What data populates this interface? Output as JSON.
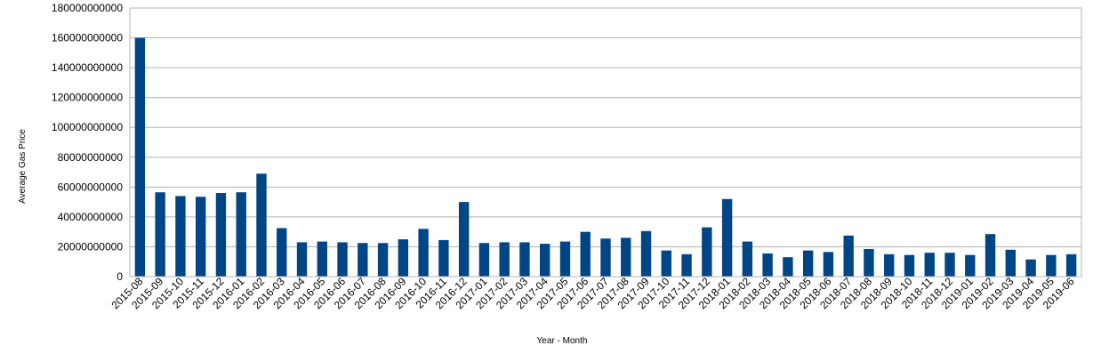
{
  "chart_data": {
    "type": "bar",
    "xlabel": "Year - Month",
    "ylabel": "Average Gas Price",
    "ylim": [
      0,
      180000000000
    ],
    "y_ticks": [
      0,
      20000000000,
      40000000000,
      60000000000,
      80000000000,
      100000000000,
      120000000000,
      140000000000,
      160000000000,
      180000000000
    ],
    "y_tick_labels": [
      "0",
      "20000000000",
      "40000000000",
      "60000000000",
      "80000000000",
      "100000000000",
      "120000000000",
      "140000000000",
      "160000000000",
      "180000000000"
    ],
    "grid": true,
    "bar_color": "#004586",
    "categories": [
      "2015-08",
      "2015-09",
      "2015-10",
      "2015-11",
      "2015-12",
      "2016-01",
      "2016-02",
      "2016-03",
      "2016-04",
      "2016-05",
      "2016-06",
      "2016-07",
      "2016-08",
      "2016-09",
      "2016-10",
      "2016-11",
      "2016-12",
      "2017-01",
      "2017-02",
      "2017-03",
      "2017-04",
      "2017-05",
      "2017-06",
      "2017-07",
      "2017-08",
      "2017-09",
      "2017-10",
      "2017-11",
      "2017-12",
      "2018-01",
      "2018-02",
      "2018-03",
      "2018-04",
      "2018-05",
      "2018-06",
      "2018-07",
      "2018-08",
      "2018-09",
      "2018-10",
      "2018-11",
      "2018-12",
      "2019-01",
      "2019-02",
      "2019-03",
      "2019-04",
      "2019-05",
      "2019-06"
    ],
    "values": [
      160000000000,
      56500000000,
      54000000000,
      53500000000,
      56000000000,
      56500000000,
      69000000000,
      32500000000,
      23000000000,
      23500000000,
      23000000000,
      22500000000,
      22500000000,
      25000000000,
      32000000000,
      24500000000,
      50000000000,
      22500000000,
      23000000000,
      23000000000,
      22000000000,
      23500000000,
      30000000000,
      25500000000,
      26000000000,
      30500000000,
      17500000000,
      15000000000,
      33000000000,
      52000000000,
      23500000000,
      15500000000,
      13000000000,
      17500000000,
      16500000000,
      27500000000,
      18500000000,
      15000000000,
      14500000000,
      16000000000,
      16000000000,
      14500000000,
      28500000000,
      18000000000,
      11500000000,
      14500000000,
      15000000000
    ]
  }
}
